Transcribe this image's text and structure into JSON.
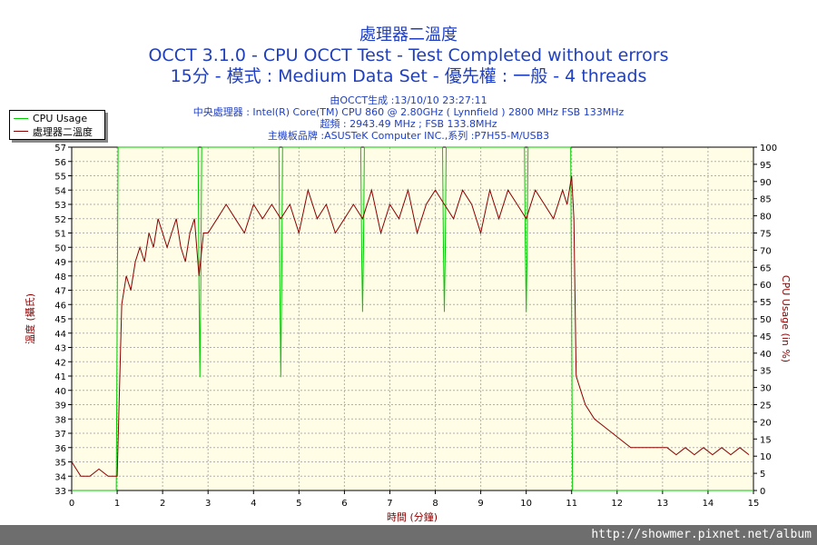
{
  "chart_data": {
    "type": "line",
    "title": "處理器二溫度",
    "subtitle_lines": [
      "OCCT 3.1.0 - CPU OCCT Test - Test Completed without errors",
      "15分 - 模式 : Medium Data Set - 優先權 : 一般 - 4 threads"
    ],
    "info_lines": [
      "由OCCT生成 :13/10/10 23:27:11",
      "中央處理器 : Intel(R) Core(TM) CPU 860 @ 2.80GHz ( Lynnfield ) 2800 MHz FSB 133MHz",
      "超頻 : 2943.49 MHz ; FSB 133.8MHz",
      "主機板品牌 :ASUSTeK Computer INC.,系列 :P7H55-M/USB3"
    ],
    "xlabel": "時間 (分鐘)",
    "ylabel_left": "溫度 (攝氏)",
    "ylabel_right": "CPU Usage (in %)",
    "xlim": [
      0,
      15
    ],
    "ylim_left": [
      33,
      57
    ],
    "ylim_right": [
      0,
      100
    ],
    "legend_position": "top-left",
    "series": [
      {
        "name": "CPU Usage",
        "axis": "right",
        "color": "#00cc00",
        "x": [
          0,
          0.98,
          1.02,
          1.06,
          2.78,
          2.8,
          2.82,
          2.84,
          2.86,
          4.56,
          4.58,
          4.6,
          4.62,
          4.64,
          6.36,
          6.38,
          6.4,
          6.42,
          6.44,
          8.16,
          8.18,
          8.2,
          8.22,
          8.24,
          9.96,
          9.98,
          10.0,
          10.02,
          10.04,
          10.98,
          11.02,
          11.06,
          15
        ],
        "values": [
          0,
          0,
          100,
          100,
          100,
          60,
          33,
          60,
          100,
          100,
          60,
          33,
          60,
          100,
          100,
          70,
          52,
          70,
          100,
          100,
          70,
          52,
          70,
          100,
          100,
          70,
          52,
          70,
          100,
          100,
          0,
          0,
          0
        ]
      },
      {
        "name": "處理器二溫度",
        "axis": "left",
        "color": "#8b0000",
        "x": [
          0,
          0.2,
          0.4,
          0.6,
          0.8,
          1.0,
          1.05,
          1.1,
          1.2,
          1.3,
          1.4,
          1.5,
          1.6,
          1.7,
          1.8,
          1.9,
          2.0,
          2.1,
          2.2,
          2.3,
          2.4,
          2.5,
          2.6,
          2.7,
          2.8,
          2.9,
          3.0,
          3.2,
          3.4,
          3.6,
          3.8,
          4.0,
          4.2,
          4.4,
          4.6,
          4.8,
          5.0,
          5.2,
          5.4,
          5.6,
          5.8,
          6.0,
          6.2,
          6.4,
          6.6,
          6.8,
          7.0,
          7.2,
          7.4,
          7.6,
          7.8,
          8.0,
          8.2,
          8.4,
          8.6,
          8.8,
          9.0,
          9.2,
          9.4,
          9.6,
          9.8,
          10.0,
          10.2,
          10.4,
          10.6,
          10.8,
          10.9,
          11.0,
          11.05,
          11.1,
          11.2,
          11.3,
          11.5,
          11.7,
          11.9,
          12.1,
          12.3,
          12.5,
          12.7,
          12.9,
          13.1,
          13.3,
          13.5,
          13.7,
          13.9,
          14.1,
          14.3,
          14.5,
          14.7,
          14.9
        ],
        "values": [
          35,
          34,
          34,
          34.5,
          34,
          34,
          40,
          46,
          48,
          47,
          49,
          50,
          49,
          51,
          50,
          52,
          51,
          50,
          51,
          52,
          50,
          49,
          51,
          52,
          48,
          51,
          51,
          52,
          53,
          52,
          51,
          53,
          52,
          53,
          52,
          53,
          51,
          54,
          52,
          53,
          51,
          52,
          53,
          52,
          54,
          51,
          53,
          52,
          54,
          51,
          53,
          54,
          53,
          52,
          54,
          53,
          51,
          54,
          52,
          54,
          53,
          52,
          54,
          53,
          52,
          54,
          53,
          55,
          52,
          41,
          40,
          39,
          38,
          37.5,
          37,
          36.5,
          36,
          36,
          36,
          36,
          36,
          35.5,
          36,
          35.5,
          36,
          35.5,
          36,
          35.5,
          36,
          35.5
        ]
      }
    ]
  },
  "footer": {
    "url": "http://showmer.pixnet.net/album"
  }
}
